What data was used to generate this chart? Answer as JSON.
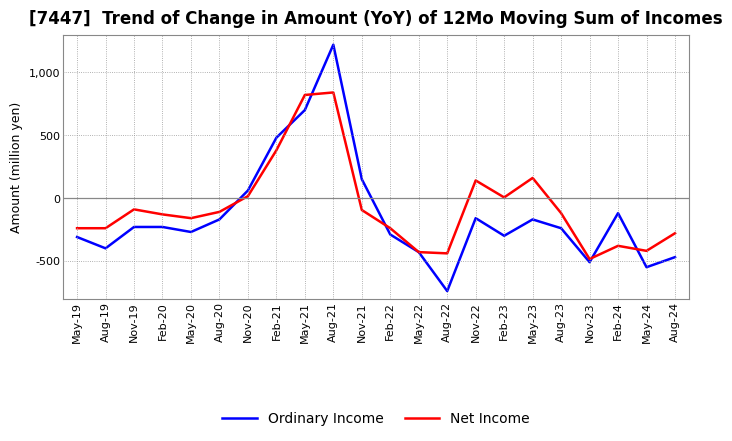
{
  "title": "[7447]  Trend of Change in Amount (YoY) of 12Mo Moving Sum of Incomes",
  "ylabel": "Amount (million yen)",
  "x_labels": [
    "May-19",
    "Aug-19",
    "Nov-19",
    "Feb-20",
    "May-20",
    "Aug-20",
    "Nov-20",
    "Feb-21",
    "May-21",
    "Aug-21",
    "Nov-21",
    "Feb-22",
    "May-22",
    "Aug-22",
    "Nov-22",
    "Feb-23",
    "May-23",
    "Aug-23",
    "Nov-23",
    "Feb-24",
    "May-24",
    "Aug-24"
  ],
  "ordinary_income": [
    -310,
    -400,
    -230,
    -230,
    -270,
    -170,
    60,
    480,
    700,
    1220,
    150,
    -290,
    -430,
    -740,
    -160,
    -300,
    -170,
    -240,
    -510,
    -120,
    -550,
    -470
  ],
  "net_income": [
    -240,
    -240,
    -90,
    -130,
    -160,
    -110,
    15,
    380,
    820,
    840,
    -95,
    -240,
    -430,
    -440,
    140,
    5,
    160,
    -120,
    -485,
    -380,
    -420,
    -280
  ],
  "ordinary_income_color": "#0000ff",
  "net_income_color": "#ff0000",
  "ylim": [
    -800,
    1300
  ],
  "yticks": [
    -500,
    0,
    500,
    1000
  ],
  "background_color": "#ffffff",
  "grid_color": "#999999",
  "title_fontsize": 12,
  "axis_fontsize": 9,
  "tick_fontsize": 8,
  "legend_fontsize": 10,
  "line_width": 1.8
}
